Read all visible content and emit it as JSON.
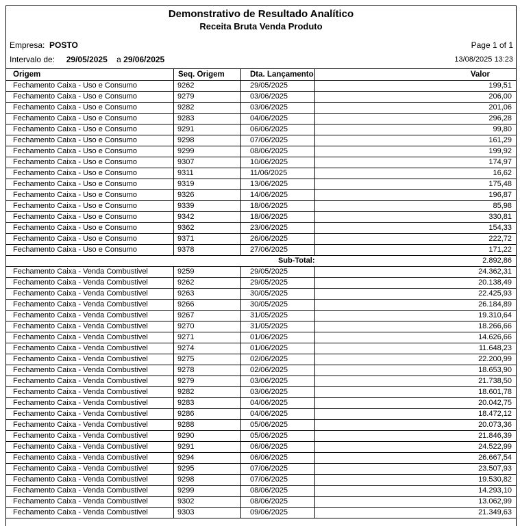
{
  "report": {
    "title": "Demonstrativo de Resultado Analítico",
    "subtitle": "Receita Bruta Venda Produto",
    "empresa_label": "Empresa:",
    "empresa": "POSTO",
    "intervalo_label": "Intervalo de:",
    "date_from": "29/05/2025",
    "date_sep": "a",
    "date_to": "29/06/2025",
    "page": "Page 1 of 1",
    "printed_at": "13/08/2025 13:23"
  },
  "table": {
    "headers": [
      "Origem",
      "Seq. Origem",
      "Dta. Lançamento",
      "Valor"
    ],
    "subtotal_label": "Sub-Total:",
    "groups": [
      {
        "origem": "Fechamento Caixa - Uso e Consumo",
        "rows": [
          [
            "9262",
            "29/05/2025",
            "199,51"
          ],
          [
            "9279",
            "03/06/2025",
            "206,00"
          ],
          [
            "9282",
            "03/06/2025",
            "201,06"
          ],
          [
            "9283",
            "04/06/2025",
            "296,28"
          ],
          [
            "9291",
            "06/06/2025",
            "99,80"
          ],
          [
            "9298",
            "07/06/2025",
            "161,29"
          ],
          [
            "9299",
            "08/06/2025",
            "199,92"
          ],
          [
            "9307",
            "10/06/2025",
            "174,97"
          ],
          [
            "9311",
            "11/06/2025",
            "16,62"
          ],
          [
            "9319",
            "13/06/2025",
            "175,48"
          ],
          [
            "9326",
            "14/06/2025",
            "196,87"
          ],
          [
            "9339",
            "18/06/2025",
            "85,98"
          ],
          [
            "9342",
            "18/06/2025",
            "330,81"
          ],
          [
            "9362",
            "23/06/2025",
            "154,33"
          ],
          [
            "9371",
            "26/06/2025",
            "222,72"
          ],
          [
            "9378",
            "27/06/2025",
            "171,22"
          ]
        ],
        "subtotal": "2.892,86"
      },
      {
        "origem": "Fechamento Caixa - Venda Combustivel",
        "rows": [
          [
            "9259",
            "29/05/2025",
            "24.362,31"
          ],
          [
            "9262",
            "29/05/2025",
            "20.138,49"
          ],
          [
            "9263",
            "30/05/2025",
            "22.425,93"
          ],
          [
            "9266",
            "30/05/2025",
            "26.184,89"
          ],
          [
            "9267",
            "31/05/2025",
            "19.310,64"
          ],
          [
            "9270",
            "31/05/2025",
            "18.266,66"
          ],
          [
            "9271",
            "01/06/2025",
            "14.626,66"
          ],
          [
            "9274",
            "01/06/2025",
            "11.648,23"
          ],
          [
            "9275",
            "02/06/2025",
            "22.200,99"
          ],
          [
            "9278",
            "02/06/2025",
            "18.653,90"
          ],
          [
            "9279",
            "03/06/2025",
            "21.738,50"
          ],
          [
            "9282",
            "03/06/2025",
            "18.601,78"
          ],
          [
            "9283",
            "04/06/2025",
            "20.042,75"
          ],
          [
            "9286",
            "04/06/2025",
            "18.472,12"
          ],
          [
            "9288",
            "05/06/2025",
            "20.073,36"
          ],
          [
            "9290",
            "05/06/2025",
            "21.846,39"
          ],
          [
            "9291",
            "06/06/2025",
            "24.522,99"
          ],
          [
            "9294",
            "06/06/2025",
            "26.667,54"
          ],
          [
            "9295",
            "07/06/2025",
            "23.507,93"
          ],
          [
            "9298",
            "07/06/2025",
            "19.530,82"
          ],
          [
            "9299",
            "08/06/2025",
            "14.293,10"
          ],
          [
            "9302",
            "08/06/2025",
            "13.062,99"
          ],
          [
            "9303",
            "09/06/2025",
            "21.349,63"
          ]
        ]
      }
    ]
  }
}
